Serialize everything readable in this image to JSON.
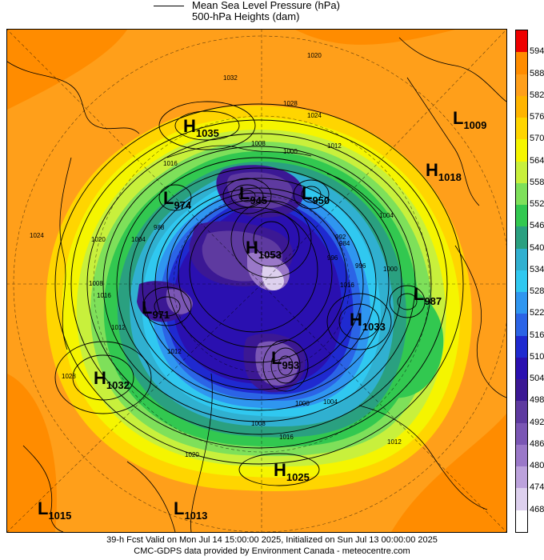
{
  "legend": {
    "line1": "Mean Sea Level Pressure (hPa)",
    "line2": "500-hPa Heights (dam)"
  },
  "colorbar": {
    "labels": [
      "594",
      "588",
      "582",
      "576",
      "570",
      "564",
      "558",
      "552",
      "546",
      "540",
      "534",
      "528",
      "522",
      "516",
      "510",
      "504",
      "498",
      "492",
      "486",
      "480",
      "474",
      "468"
    ],
    "colors": [
      "#ee0000",
      "#ff8c00",
      "#ff9f1a",
      "#ffb400",
      "#ffd500",
      "#f5f500",
      "#c8f03c",
      "#7ee05a",
      "#32c850",
      "#2aa080",
      "#30b0d0",
      "#30c8f0",
      "#2f96f0",
      "#2b64e6",
      "#1f2ad0",
      "#2a10b0",
      "#3b1894",
      "#5e3aa0",
      "#7a56b4",
      "#9a78c8",
      "#bca2dc",
      "#ddd0ee",
      "#ffffff"
    ]
  },
  "systems": [
    {
      "type": "H",
      "value": "1035"
    },
    {
      "type": "L",
      "value": "1009"
    },
    {
      "type": "H",
      "value": "1018"
    },
    {
      "type": "L",
      "value": "974"
    },
    {
      "type": "L",
      "value": "945"
    },
    {
      "type": "L",
      "value": "950"
    },
    {
      "type": "H",
      "value": "1053"
    },
    {
      "type": "L",
      "value": "971"
    },
    {
      "type": "L",
      "value": "987"
    },
    {
      "type": "H",
      "value": "1033"
    },
    {
      "type": "L",
      "value": "953"
    },
    {
      "type": "H",
      "value": "1032"
    },
    {
      "type": "H",
      "value": "1025"
    },
    {
      "type": "L",
      "value": "1015"
    },
    {
      "type": "L",
      "value": "1013"
    }
  ],
  "isobar_labels": [
    "1032",
    "1028",
    "1024",
    "1020",
    "1016",
    "1012",
    "1008",
    "1004",
    "1000",
    "996",
    "992",
    "988",
    "984",
    "1028",
    "1024",
    "1020",
    "1016",
    "1012",
    "1008",
    "1004",
    "1000",
    "996",
    "1016",
    "1012",
    "1008",
    "1004",
    "1000",
    "1020",
    "1016",
    "1012"
  ],
  "footer": {
    "line1": "39-h Fcst Valid on Mon Jul 14 15:00:00 2025, Initialized on Sun Jul 13 00:00:00 2025",
    "line2": "CMC-GDPS data provided by Environment Canada - meteocentre.com"
  }
}
